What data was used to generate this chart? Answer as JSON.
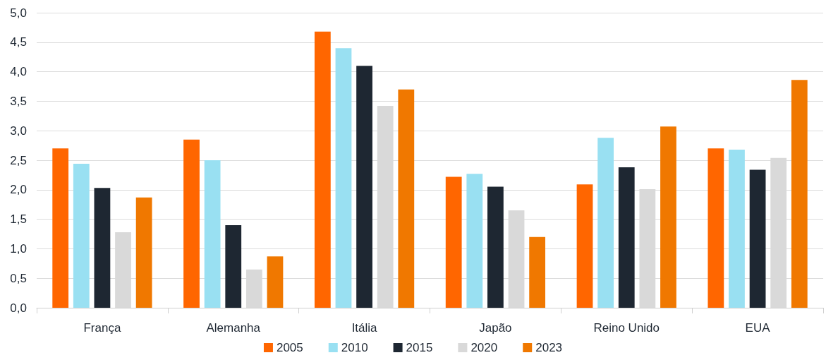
{
  "chart_data": {
    "type": "bar",
    "categories": [
      "França",
      "Alemanha",
      "Itália",
      "Japão",
      "Reino Unido",
      "EUA"
    ],
    "series": [
      {
        "name": "2005",
        "color": "#ff6600",
        "values": [
          2.7,
          2.85,
          4.68,
          2.22,
          2.09,
          2.7
        ]
      },
      {
        "name": "2010",
        "color": "#99e0f2",
        "values": [
          2.44,
          2.5,
          4.4,
          2.27,
          2.88,
          2.68
        ]
      },
      {
        "name": "2015",
        "color": "#1e2732",
        "values": [
          2.03,
          1.4,
          4.1,
          2.05,
          2.38,
          2.34
        ]
      },
      {
        "name": "2020",
        "color": "#d9d9d9",
        "values": [
          1.28,
          0.65,
          3.42,
          1.65,
          2.01,
          2.54
        ]
      },
      {
        "name": "2023",
        "color": "#f07800",
        "values": [
          1.87,
          0.87,
          3.7,
          1.2,
          3.07,
          3.86
        ]
      }
    ],
    "ylim": [
      0,
      5
    ],
    "yticks": [
      {
        "value": 0,
        "label": "0,0"
      },
      {
        "value": 0.5,
        "label": "0,5"
      },
      {
        "value": 1,
        "label": "1,0"
      },
      {
        "value": 1.5,
        "label": "1,5"
      },
      {
        "value": 2,
        "label": "2,0"
      },
      {
        "value": 2.5,
        "label": "2,5"
      },
      {
        "value": 3,
        "label": "3,0"
      },
      {
        "value": 3.5,
        "label": "3,5"
      },
      {
        "value": 4,
        "label": "4,0"
      },
      {
        "value": 4.5,
        "label": "4,5"
      },
      {
        "value": 5,
        "label": "5,0"
      }
    ],
    "grid": "y",
    "legend": "bottom"
  }
}
